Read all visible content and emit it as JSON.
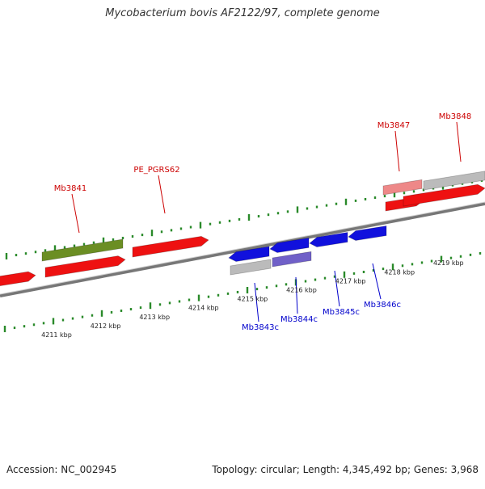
{
  "title": "Mycobacterium bovis AF2122/97, complete genome",
  "footer": {
    "accession": "Accession: NC_002945",
    "summary": "Topology: circular; Length: 4,345,492 bp; Genes: 3,968"
  },
  "colors": {
    "forward_gene": "#ee1111",
    "reverse_gene": "#1111dd",
    "highlight_green": "#6b8e23",
    "highlight_purple": "#7060c8",
    "pseudo_gray": "#bbbbbb",
    "light_red": "#ee8888",
    "tick": "#2a8a2a",
    "forward_label": "#cc0000",
    "reverse_label": "#0000cc"
  },
  "ruler": {
    "labels": [
      "4211 kbp",
      "4212 kbp",
      "4213 kbp",
      "4214 kbp",
      "4215 kbp",
      "4216 kbp",
      "4217 kbp",
      "4218 kbp",
      "4219 kbp"
    ]
  },
  "gene_labels": {
    "forward": [
      "Mb3841",
      "PE_PGRS62",
      "Mb3847",
      "Mb3848"
    ],
    "reverse": [
      "Mb3843c",
      "Mb3844c",
      "Mb3845c",
      "Mb3846c"
    ]
  }
}
